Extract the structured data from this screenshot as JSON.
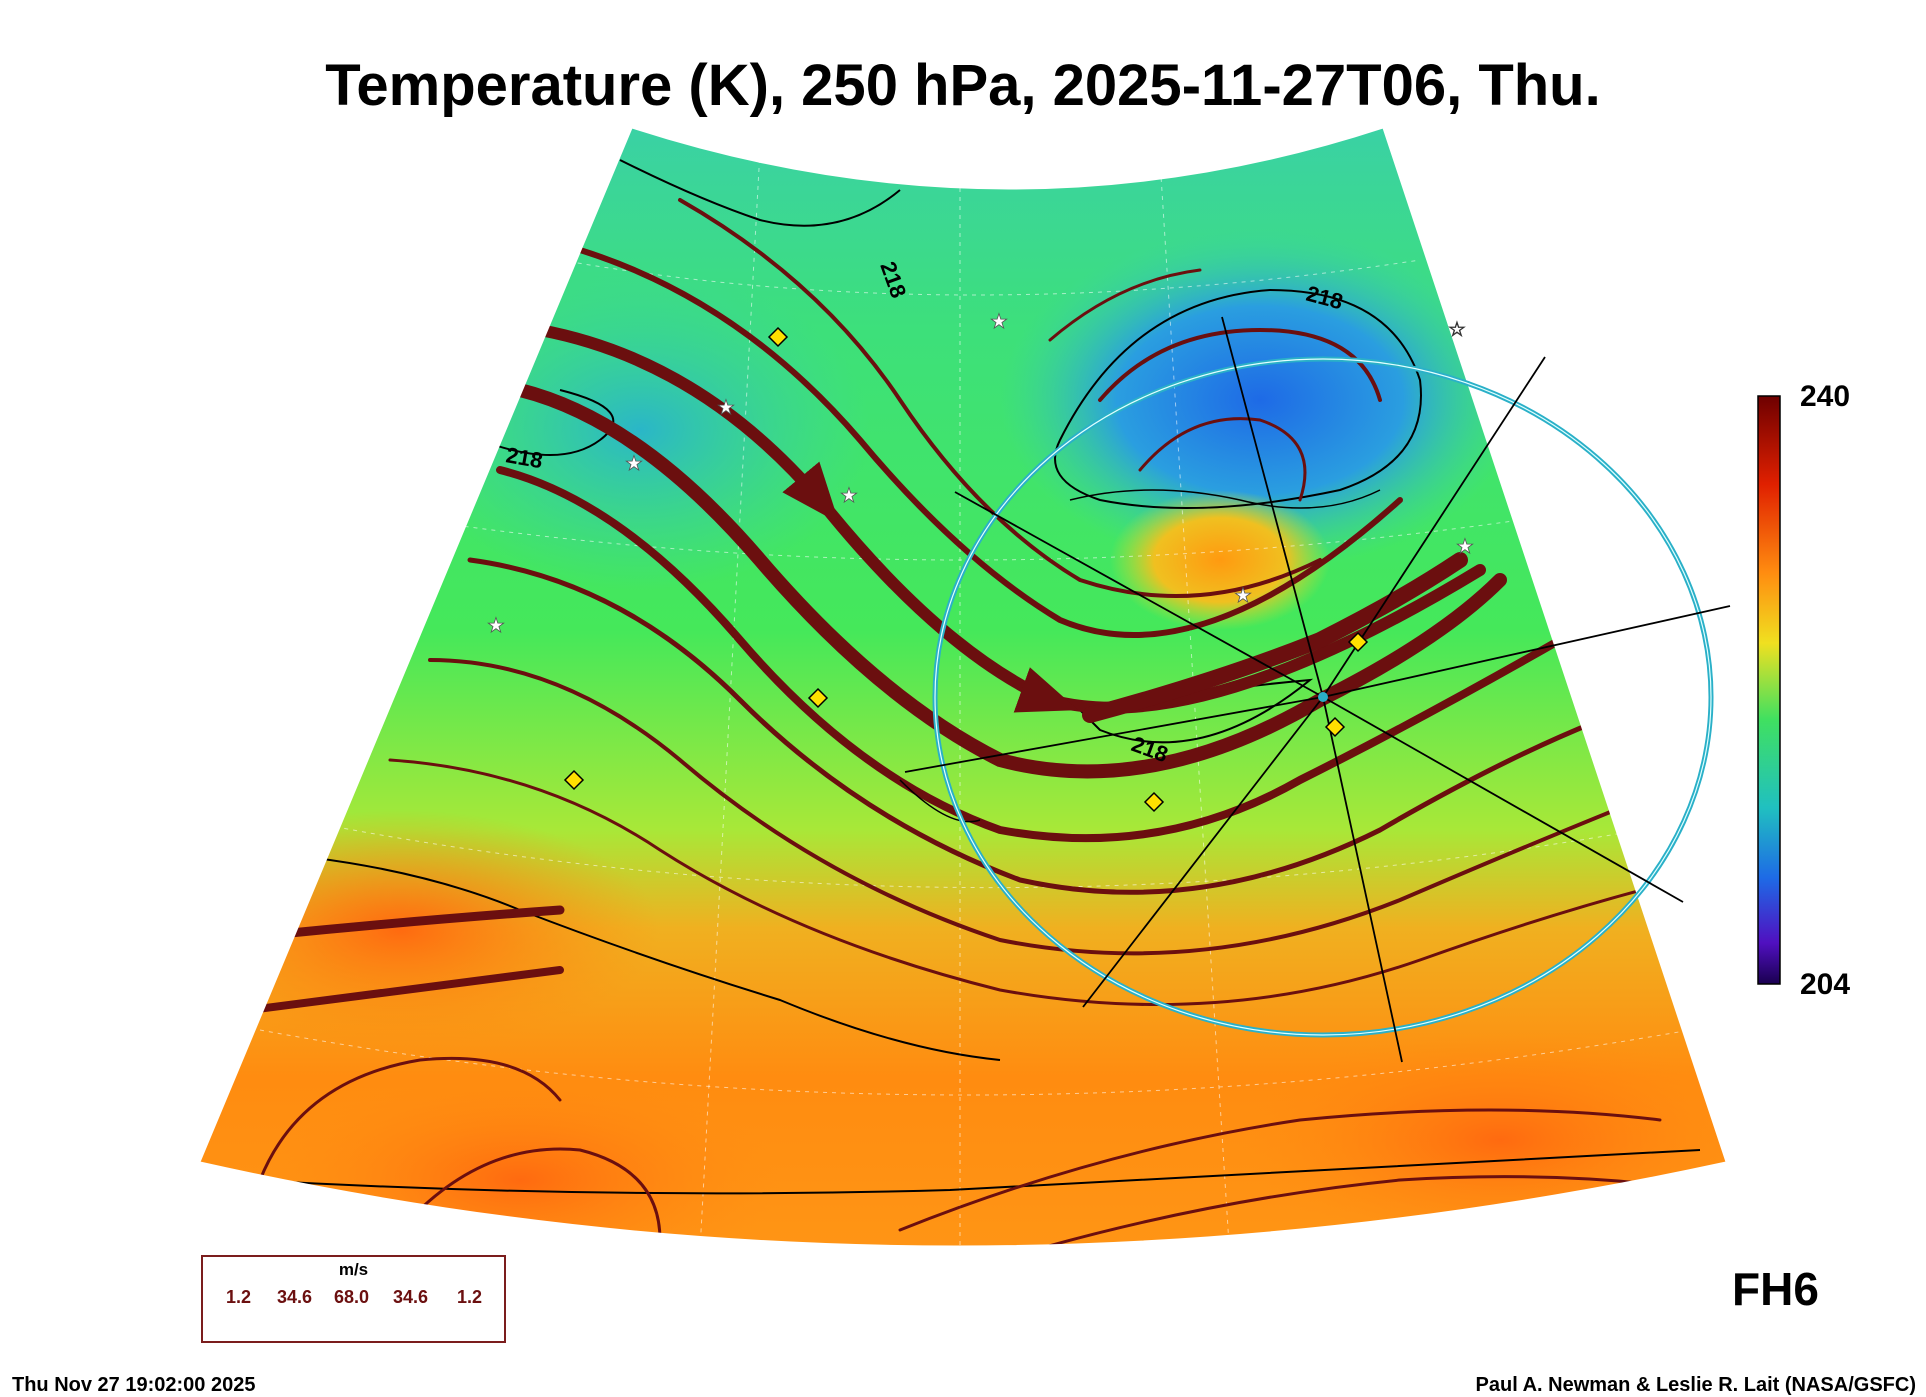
{
  "title": "Temperature (K), 250 hPa, 2025-11-27T06, Thu.",
  "colorbar": {
    "max_label": "240",
    "min_label": "204"
  },
  "contour_labels": [
    "218",
    "218",
    "218",
    "218"
  ],
  "vector_legend": {
    "unit": "m/s",
    "values": [
      "1.2",
      "34.6",
      "68.0",
      "34.6",
      "1.2"
    ]
  },
  "forecast_hour": "FH6",
  "footer": {
    "timestamp": "Thu Nov 27 19:02:00 2025",
    "credit": "Paul A. Newman & Leslie R. Lait (NASA/GSFC)"
  },
  "colors": {
    "streamline": "#6b0f0f",
    "ring": "#2ab0c8",
    "diamond": "#ffe000",
    "cold": "#1e6ae6",
    "mid": "#3de07a",
    "warm": "#ff8c10"
  }
}
